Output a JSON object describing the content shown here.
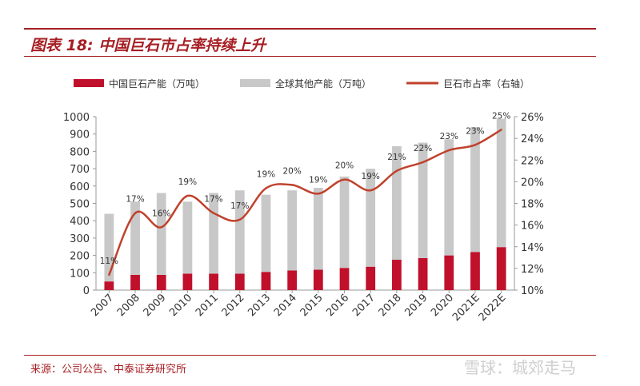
{
  "figure": {
    "title": "图表 18:  中国巨石市占率持续上升",
    "source": "来源：公司公告、中泰证券研究所",
    "watermark": "雪球：城郊走马"
  },
  "colors": {
    "china": "#c0102b",
    "global": "#c8c8c8",
    "share": "#c0412b",
    "axis": "#999999"
  },
  "chart_data": {
    "type": "bar",
    "categories": [
      "2007",
      "2008",
      "2009",
      "2010",
      "2011",
      "2012",
      "2013",
      "2014",
      "2015",
      "2016",
      "2017",
      "2018",
      "2019",
      "2020",
      "2021E",
      "2022E"
    ],
    "series": [
      {
        "name": "中国巨石产能（万吨）",
        "type": "bar",
        "axis": "left",
        "stacked": true,
        "values": [
          50,
          88,
          88,
          95,
          95,
          95,
          105,
          113,
          118,
          128,
          135,
          175,
          185,
          200,
          220,
          248
        ]
      },
      {
        "name": "全球其他产能（万吨）",
        "type": "bar",
        "axis": "left",
        "stacked": true,
        "values": [
          390,
          422,
          472,
          415,
          465,
          480,
          445,
          462,
          472,
          527,
          565,
          655,
          665,
          670,
          720,
          740
        ]
      },
      {
        "name": "巨石市占率（右轴）",
        "type": "line",
        "axis": "right",
        "values": [
          11.4,
          17.1,
          15.8,
          18.7,
          17.1,
          16.5,
          19.4,
          19.7,
          18.9,
          20.2,
          19.2,
          21.0,
          21.8,
          22.9,
          23.4,
          24.8
        ],
        "labels": [
          "11%",
          "17%",
          "16%",
          "19%",
          "17%",
          "17%",
          "19%",
          "20%",
          "19%",
          "20%",
          "19%",
          "21%",
          "22%",
          "23%",
          "23%",
          "25%"
        ]
      }
    ],
    "ylim": [
      0,
      1000
    ],
    "yticks": [
      0,
      100,
      200,
      300,
      400,
      500,
      600,
      700,
      800,
      900,
      1000
    ],
    "ylim_right": [
      10,
      26
    ],
    "yticks_right": [
      "10%",
      "12%",
      "14%",
      "16%",
      "18%",
      "20%",
      "22%",
      "24%",
      "26%"
    ],
    "legend_position": "top"
  }
}
